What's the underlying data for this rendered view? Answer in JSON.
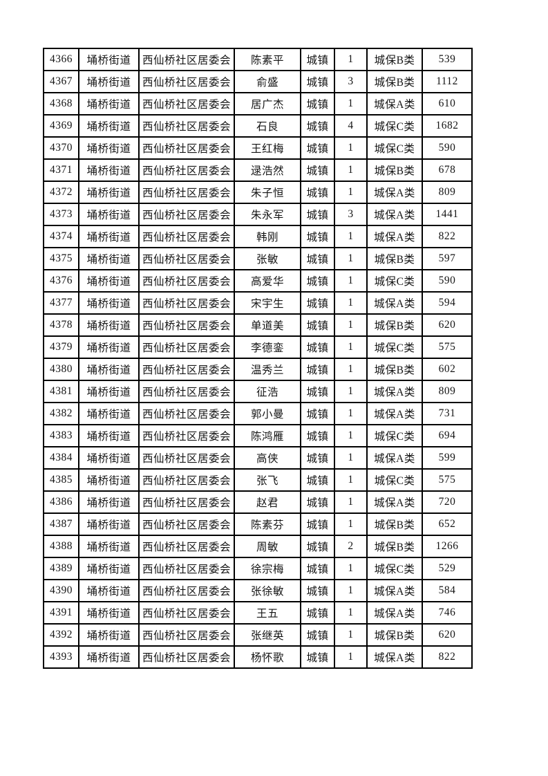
{
  "page": {
    "background_color": "#ffffff",
    "text_color": "#141414",
    "table_border_color": "#000000"
  },
  "table": {
    "column_keys": [
      "serial-number",
      "street",
      "community",
      "person-name",
      "residence-type",
      "person-count",
      "insurance-category",
      "amount"
    ],
    "rows": [
      [
        "4366",
        "埇桥街道",
        "西仙桥社区居委会",
        "陈素平",
        "城镇",
        "1",
        "城保B类",
        "539"
      ],
      [
        "4367",
        "埇桥街道",
        "西仙桥社区居委会",
        "俞盛",
        "城镇",
        "3",
        "城保B类",
        "1112"
      ],
      [
        "4368",
        "埇桥街道",
        "西仙桥社区居委会",
        "居广杰",
        "城镇",
        "1",
        "城保A类",
        "610"
      ],
      [
        "4369",
        "埇桥街道",
        "西仙桥社区居委会",
        "石良",
        "城镇",
        "4",
        "城保C类",
        "1682"
      ],
      [
        "4370",
        "埇桥街道",
        "西仙桥社区居委会",
        "王红梅",
        "城镇",
        "1",
        "城保C类",
        "590"
      ],
      [
        "4371",
        "埇桥街道",
        "西仙桥社区居委会",
        "逯浩然",
        "城镇",
        "1",
        "城保B类",
        "678"
      ],
      [
        "4372",
        "埇桥街道",
        "西仙桥社区居委会",
        "朱子恒",
        "城镇",
        "1",
        "城保A类",
        "809"
      ],
      [
        "4373",
        "埇桥街道",
        "西仙桥社区居委会",
        "朱永军",
        "城镇",
        "3",
        "城保A类",
        "1441"
      ],
      [
        "4374",
        "埇桥街道",
        "西仙桥社区居委会",
        "韩刚",
        "城镇",
        "1",
        "城保A类",
        "822"
      ],
      [
        "4375",
        "埇桥街道",
        "西仙桥社区居委会",
        "张敏",
        "城镇",
        "1",
        "城保B类",
        "597"
      ],
      [
        "4376",
        "埇桥街道",
        "西仙桥社区居委会",
        "高爱华",
        "城镇",
        "1",
        "城保C类",
        "590"
      ],
      [
        "4377",
        "埇桥街道",
        "西仙桥社区居委会",
        "宋宇生",
        "城镇",
        "1",
        "城保A类",
        "594"
      ],
      [
        "4378",
        "埇桥街道",
        "西仙桥社区居委会",
        "单道美",
        "城镇",
        "1",
        "城保B类",
        "620"
      ],
      [
        "4379",
        "埇桥街道",
        "西仙桥社区居委会",
        "李德銮",
        "城镇",
        "1",
        "城保C类",
        "575"
      ],
      [
        "4380",
        "埇桥街道",
        "西仙桥社区居委会",
        "温秀兰",
        "城镇",
        "1",
        "城保B类",
        "602"
      ],
      [
        "4381",
        "埇桥街道",
        "西仙桥社区居委会",
        "征浩",
        "城镇",
        "1",
        "城保A类",
        "809"
      ],
      [
        "4382",
        "埇桥街道",
        "西仙桥社区居委会",
        "郭小曼",
        "城镇",
        "1",
        "城保A类",
        "731"
      ],
      [
        "4383",
        "埇桥街道",
        "西仙桥社区居委会",
        "陈鸿雁",
        "城镇",
        "1",
        "城保C类",
        "694"
      ],
      [
        "4384",
        "埇桥街道",
        "西仙桥社区居委会",
        "高侠",
        "城镇",
        "1",
        "城保A类",
        "599"
      ],
      [
        "4385",
        "埇桥街道",
        "西仙桥社区居委会",
        "张飞",
        "城镇",
        "1",
        "城保C类",
        "575"
      ],
      [
        "4386",
        "埇桥街道",
        "西仙桥社区居委会",
        "赵君",
        "城镇",
        "1",
        "城保A类",
        "720"
      ],
      [
        "4387",
        "埇桥街道",
        "西仙桥社区居委会",
        "陈素芬",
        "城镇",
        "1",
        "城保B类",
        "652"
      ],
      [
        "4388",
        "埇桥街道",
        "西仙桥社区居委会",
        "周敏",
        "城镇",
        "2",
        "城保B类",
        "1266"
      ],
      [
        "4389",
        "埇桥街道",
        "西仙桥社区居委会",
        "徐宗梅",
        "城镇",
        "1",
        "城保C类",
        "529"
      ],
      [
        "4390",
        "埇桥街道",
        "西仙桥社区居委会",
        "张徐敏",
        "城镇",
        "1",
        "城保A类",
        "584"
      ],
      [
        "4391",
        "埇桥街道",
        "西仙桥社区居委会",
        "王五",
        "城镇",
        "1",
        "城保A类",
        "746"
      ],
      [
        "4392",
        "埇桥街道",
        "西仙桥社区居委会",
        "张继英",
        "城镇",
        "1",
        "城保B类",
        "620"
      ],
      [
        "4393",
        "埇桥街道",
        "西仙桥社区居委会",
        "杨怀歌",
        "城镇",
        "1",
        "城保A类",
        "822"
      ]
    ]
  }
}
